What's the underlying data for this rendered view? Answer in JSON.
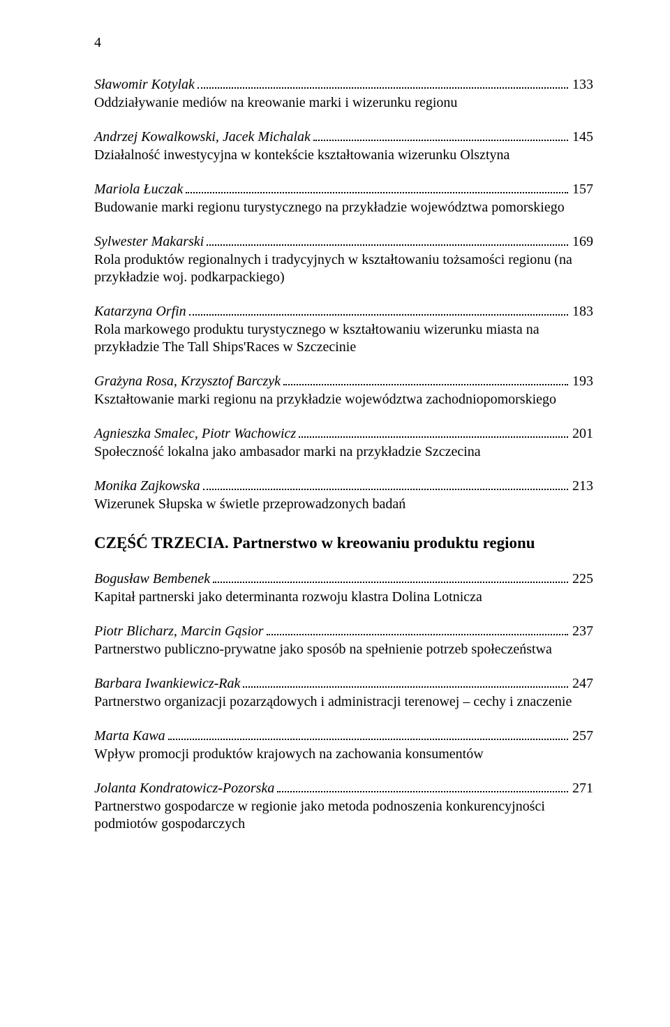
{
  "page_number": "4",
  "sections": [
    {
      "heading": null,
      "entries": [
        {
          "author": "Sławomir Kotylak",
          "page": "133",
          "title": "Oddziaływanie mediów na kreowanie marki i wizerunku regionu"
        },
        {
          "author": "Andrzej Kowalkowski, Jacek Michalak",
          "page": "145",
          "title": "Działalność inwestycyjna w kontekście kształtowania wizerunku Olsztyna"
        },
        {
          "author": "Mariola Łuczak",
          "page": "157",
          "title": "Budowanie marki regionu turystycznego na przykładzie województwa pomorskiego"
        },
        {
          "author": "Sylwester Makarski",
          "page": "169",
          "title": "Rola produktów regionalnych i tradycyjnych w kształtowaniu tożsamości regionu (na przykładzie woj. podkarpackiego)"
        },
        {
          "author": "Katarzyna Orfin",
          "page": "183",
          "title": "Rola markowego produktu turystycznego w kształtowaniu wizerunku miasta na przykładzie The Tall Ships'Races w Szczecinie"
        },
        {
          "author": "Grażyna Rosa, Krzysztof Barczyk",
          "page": "193",
          "title": "Kształtowanie marki regionu na przykładzie województwa zachodniopomorskiego"
        },
        {
          "author": "Agnieszka Smalec, Piotr Wachowicz",
          "page": "201",
          "title": "Społeczność lokalna jako ambasador marki na przykładzie Szczecina"
        },
        {
          "author": "Monika Zajkowska",
          "page": "213",
          "title": "Wizerunek Słupska w świetle przeprowadzonych badań"
        }
      ]
    },
    {
      "heading": "CZĘŚĆ TRZECIA. Partnerstwo w kreowaniu produktu regionu",
      "entries": [
        {
          "author": "Bogusław Bembenek",
          "page": "225",
          "title": "Kapitał partnerski jako determinanta rozwoju klastra Dolina Lotnicza"
        },
        {
          "author": "Piotr Blicharz, Marcin Gąsior",
          "page": "237",
          "title": "Partnerstwo publiczno-prywatne jako sposób na spełnienie potrzeb społeczeństwa"
        },
        {
          "author": "Barbara Iwankiewicz-Rak",
          "page": "247",
          "title": "Partnerstwo organizacji pozarządowych i administracji terenowej – cechy i znaczenie"
        },
        {
          "author": "Marta Kawa",
          "page": "257",
          "title": "Wpływ promocji produktów krajowych na zachowania konsumentów"
        },
        {
          "author": "Jolanta Kondratowicz-Pozorska",
          "page": "271",
          "title": "Partnerstwo gospodarcze w regionie jako metoda podnoszenia konkurencyjności podmiotów gospodarczych"
        }
      ]
    }
  ]
}
